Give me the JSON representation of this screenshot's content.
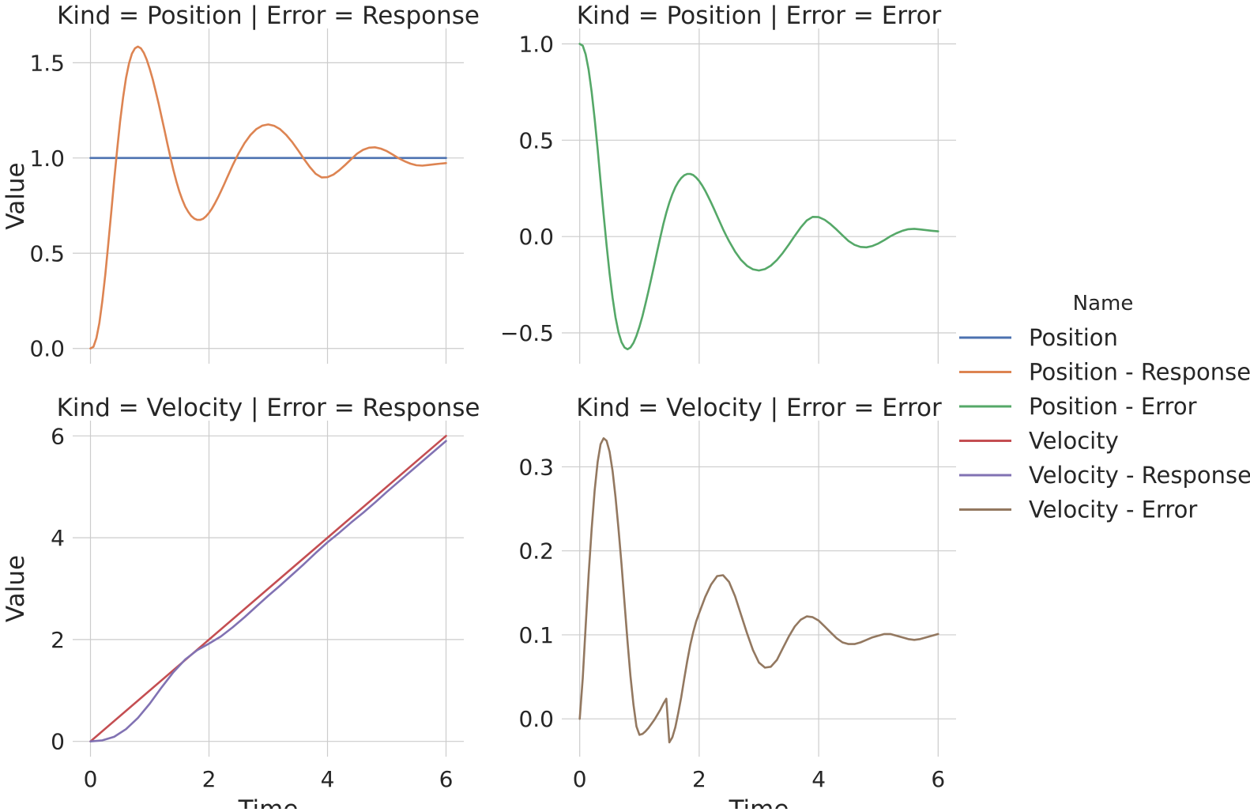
{
  "chart_data": {
    "type": "line",
    "legend": {
      "title": "Name",
      "position": "right",
      "entries": [
        {
          "name": "Position",
          "color": "#4c72b0"
        },
        {
          "name": "Position - Response",
          "color": "#dd8452"
        },
        {
          "name": "Position - Error",
          "color": "#55a868"
        },
        {
          "name": "Velocity",
          "color": "#c44e52"
        },
        {
          "name": "Velocity - Response",
          "color": "#8172b3"
        },
        {
          "name": "Velocity - Error",
          "color": "#937860"
        }
      ]
    },
    "grid": true,
    "panels": [
      {
        "title": "Kind = Position | Error = Response",
        "xlabel": "",
        "ylabel": "Value",
        "xlim": [
          -0.3,
          6.3
        ],
        "ylim": [
          -0.08,
          1.68
        ],
        "xticks": [
          0,
          2,
          4,
          6
        ],
        "yticks": [
          0.0,
          0.5,
          1.0,
          1.5
        ],
        "ytick_labels": [
          "0.0",
          "0.5",
          "1.0",
          "1.5"
        ],
        "show_xtick_labels": false,
        "series": [
          {
            "name": "Position",
            "color": "#4c72b0",
            "x": [
              0,
              6
            ],
            "y": [
              1.0,
              1.0
            ]
          },
          {
            "name": "Position - Response",
            "color": "#dd8452",
            "x": [
              0,
              0.05,
              0.1,
              0.15,
              0.2,
              0.25,
              0.3,
              0.35,
              0.4,
              0.45,
              0.5,
              0.55,
              0.6,
              0.65,
              0.7,
              0.75,
              0.8,
              0.85,
              0.9,
              0.95,
              1.0,
              1.05,
              1.1,
              1.15,
              1.2,
              1.25,
              1.3,
              1.35,
              1.4,
              1.45,
              1.5,
              1.55,
              1.6,
              1.65,
              1.7,
              1.75,
              1.8,
              1.85,
              1.9,
              1.95,
              2.0,
              2.05,
              2.1,
              2.15,
              2.2,
              2.25,
              2.3,
              2.35,
              2.4,
              2.45,
              2.5,
              2.6,
              2.7,
              2.8,
              2.9,
              3.0,
              3.1,
              3.2,
              3.3,
              3.4,
              3.5,
              3.6,
              3.7,
              3.8,
              3.9,
              4.0,
              4.1,
              4.2,
              4.3,
              4.4,
              4.5,
              4.6,
              4.7,
              4.8,
              4.9,
              5.0,
              5.1,
              5.2,
              5.3,
              5.4,
              5.5,
              5.6,
              5.7,
              5.8,
              5.9,
              6.0
            ],
            "y": [
              0.0,
              0.009,
              0.054,
              0.135,
              0.249,
              0.389,
              0.547,
              0.715,
              0.884,
              1.045,
              1.192,
              1.318,
              1.42,
              1.497,
              1.548,
              1.576,
              1.585,
              1.576,
              1.552,
              1.515,
              1.468,
              1.413,
              1.351,
              1.285,
              1.215,
              1.144,
              1.072,
              1.002,
              0.936,
              0.876,
              0.824,
              0.78,
              0.744,
              0.717,
              0.696,
              0.682,
              0.675,
              0.675,
              0.681,
              0.694,
              0.712,
              0.735,
              0.762,
              0.792,
              0.824,
              0.858,
              0.893,
              0.928,
              0.962,
              0.994,
              1.024,
              1.078,
              1.121,
              1.152,
              1.17,
              1.176,
              1.169,
              1.151,
              1.122,
              1.085,
              1.042,
              0.996,
              0.953,
              0.917,
              0.898,
              0.899,
              0.913,
              0.936,
              0.964,
              0.994,
              1.023,
              1.043,
              1.054,
              1.056,
              1.049,
              1.036,
              1.018,
              0.999,
              0.983,
              0.97,
              0.962,
              0.96,
              0.963,
              0.967,
              0.97,
              0.973
            ]
          }
        ]
      },
      {
        "title": "Kind = Position | Error = Error",
        "xlabel": "",
        "ylabel": "",
        "xlim": [
          -0.3,
          6.3
        ],
        "ylim": [
          -0.66,
          1.08
        ],
        "xticks": [
          0,
          2,
          4,
          6
        ],
        "yticks": [
          -0.5,
          0.0,
          0.5,
          1.0
        ],
        "ytick_labels": [
          "−0.5",
          "0.0",
          "0.5",
          "1.0"
        ],
        "show_xtick_labels": false,
        "series": [
          {
            "name": "Position - Error",
            "color": "#55a868",
            "x": [
              0,
              0.05,
              0.1,
              0.15,
              0.2,
              0.25,
              0.3,
              0.35,
              0.4,
              0.45,
              0.5,
              0.55,
              0.6,
              0.65,
              0.7,
              0.75,
              0.8,
              0.85,
              0.9,
              0.95,
              1.0,
              1.05,
              1.1,
              1.15,
              1.2,
              1.25,
              1.3,
              1.35,
              1.4,
              1.45,
              1.5,
              1.55,
              1.6,
              1.65,
              1.7,
              1.75,
              1.8,
              1.85,
              1.9,
              1.95,
              2.0,
              2.05,
              2.1,
              2.15,
              2.2,
              2.25,
              2.3,
              2.35,
              2.4,
              2.45,
              2.5,
              2.6,
              2.7,
              2.8,
              2.9,
              3.0,
              3.1,
              3.2,
              3.3,
              3.4,
              3.5,
              3.6,
              3.7,
              3.8,
              3.9,
              4.0,
              4.1,
              4.2,
              4.3,
              4.4,
              4.5,
              4.6,
              4.7,
              4.8,
              4.9,
              5.0,
              5.1,
              5.2,
              5.3,
              5.4,
              5.5,
              5.6,
              5.7,
              5.8,
              5.9,
              6.0
            ],
            "y": [
              1.0,
              0.991,
              0.946,
              0.865,
              0.751,
              0.611,
              0.453,
              0.285,
              0.116,
              -0.045,
              -0.192,
              -0.318,
              -0.42,
              -0.497,
              -0.548,
              -0.576,
              -0.585,
              -0.576,
              -0.552,
              -0.515,
              -0.468,
              -0.413,
              -0.351,
              -0.285,
              -0.215,
              -0.144,
              -0.072,
              -0.002,
              0.064,
              0.124,
              0.176,
              0.22,
              0.256,
              0.283,
              0.304,
              0.318,
              0.325,
              0.325,
              0.319,
              0.306,
              0.288,
              0.265,
              0.238,
              0.208,
              0.176,
              0.142,
              0.107,
              0.072,
              0.038,
              0.006,
              -0.024,
              -0.078,
              -0.121,
              -0.152,
              -0.17,
              -0.176,
              -0.169,
              -0.151,
              -0.122,
              -0.085,
              -0.042,
              0.004,
              0.047,
              0.083,
              0.102,
              0.101,
              0.087,
              0.064,
              0.036,
              0.006,
              -0.023,
              -0.043,
              -0.054,
              -0.056,
              -0.049,
              -0.036,
              -0.018,
              0.001,
              0.017,
              0.03,
              0.038,
              0.04,
              0.037,
              0.033,
              0.03,
              0.027
            ]
          }
        ]
      },
      {
        "title": "Kind = Velocity | Error = Response",
        "xlabel": "Time",
        "ylabel": "Value",
        "xlim": [
          -0.3,
          6.3
        ],
        "ylim": [
          -0.3,
          6.3
        ],
        "xticks": [
          0,
          2,
          4,
          6
        ],
        "yticks": [
          0,
          2,
          4,
          6
        ],
        "ytick_labels": [
          "0",
          "2",
          "4",
          "6"
        ],
        "show_xtick_labels": true,
        "series": [
          {
            "name": "Velocity",
            "color": "#c44e52",
            "x": [
              0,
              6
            ],
            "y": [
              0,
              6
            ]
          },
          {
            "name": "Velocity - Response",
            "color": "#8172b3",
            "x": [
              0,
              0.2,
              0.4,
              0.6,
              0.8,
              1.0,
              1.2,
              1.4,
              1.6,
              1.8,
              2.0,
              2.2,
              2.4,
              2.6,
              2.8,
              3.0,
              3.2,
              3.4,
              3.6,
              3.8,
              4.0,
              4.2,
              4.4,
              4.6,
              4.8,
              5.0,
              5.2,
              5.4,
              5.6,
              5.8,
              6.0
            ],
            "y": [
              0,
              0.02,
              0.09,
              0.24,
              0.46,
              0.74,
              1.06,
              1.36,
              1.61,
              1.79,
              1.92,
              2.06,
              2.24,
              2.44,
              2.65,
              2.86,
              3.06,
              3.27,
              3.48,
              3.7,
              3.91,
              4.1,
              4.3,
              4.49,
              4.69,
              4.9,
              5.1,
              5.3,
              5.5,
              5.7,
              5.9
            ]
          }
        ]
      },
      {
        "title": "Kind = Velocity | Error = Error",
        "xlabel": "Time",
        "ylabel": "",
        "xlim": [
          -0.3,
          6.3
        ],
        "ylim": [
          -0.045,
          0.355
        ],
        "xticks": [
          0,
          2,
          4,
          6
        ],
        "yticks": [
          0.0,
          0.1,
          0.2,
          0.3
        ],
        "ytick_labels": [
          "0.0",
          "0.1",
          "0.2",
          "0.3"
        ],
        "show_xtick_labels": true,
        "series": [
          {
            "name": "Velocity - Error",
            "color": "#937860",
            "x": [
              0,
              0.05,
              0.1,
              0.15,
              0.2,
              0.25,
              0.3,
              0.35,
              0.4,
              0.45,
              0.5,
              0.55,
              0.6,
              0.65,
              0.7,
              0.75,
              0.8,
              0.85,
              0.9,
              0.95,
              1.0,
              1.05,
              1.1,
              1.15,
              1.2,
              1.25,
              1.3,
              1.35,
              1.4,
              1.45,
              1.5,
              1.55,
              1.6,
              1.65,
              1.7,
              1.75,
              1.8,
              1.85,
              1.9,
              1.95,
              2.0,
              2.1,
              2.2,
              2.3,
              2.4,
              2.5,
              2.6,
              2.7,
              2.8,
              2.9,
              3.0,
              3.1,
              3.2,
              3.3,
              3.4,
              3.5,
              3.6,
              3.7,
              3.8,
              3.9,
              4.0,
              4.1,
              4.2,
              4.3,
              4.4,
              4.5,
              4.6,
              4.7,
              4.8,
              4.9,
              5.0,
              5.1,
              5.2,
              5.3,
              5.4,
              5.5,
              5.6,
              5.7,
              5.8,
              5.9,
              6.0
            ],
            "y": [
              0.0,
              0.048,
              0.11,
              0.172,
              0.226,
              0.272,
              0.306,
              0.327,
              0.334,
              0.331,
              0.318,
              0.295,
              0.264,
              0.226,
              0.184,
              0.138,
              0.092,
              0.051,
              0.017,
              -0.009,
              -0.019,
              -0.018,
              -0.015,
              -0.011,
              -0.006,
              -0.001,
              0.005,
              0.011,
              0.018,
              0.024,
              -0.028,
              -0.022,
              -0.01,
              0.007,
              0.026,
              0.048,
              0.069,
              0.088,
              0.103,
              0.116,
              0.126,
              0.145,
              0.16,
              0.17,
              0.171,
              0.163,
              0.146,
              0.124,
              0.102,
              0.082,
              0.067,
              0.061,
              0.062,
              0.07,
              0.084,
              0.098,
              0.11,
              0.118,
              0.122,
              0.121,
              0.117,
              0.11,
              0.103,
              0.096,
              0.091,
              0.089,
              0.089,
              0.091,
              0.094,
              0.097,
              0.099,
              0.101,
              0.101,
              0.099,
              0.097,
              0.095,
              0.094,
              0.095,
              0.097,
              0.099,
              0.101
            ]
          }
        ]
      }
    ]
  }
}
